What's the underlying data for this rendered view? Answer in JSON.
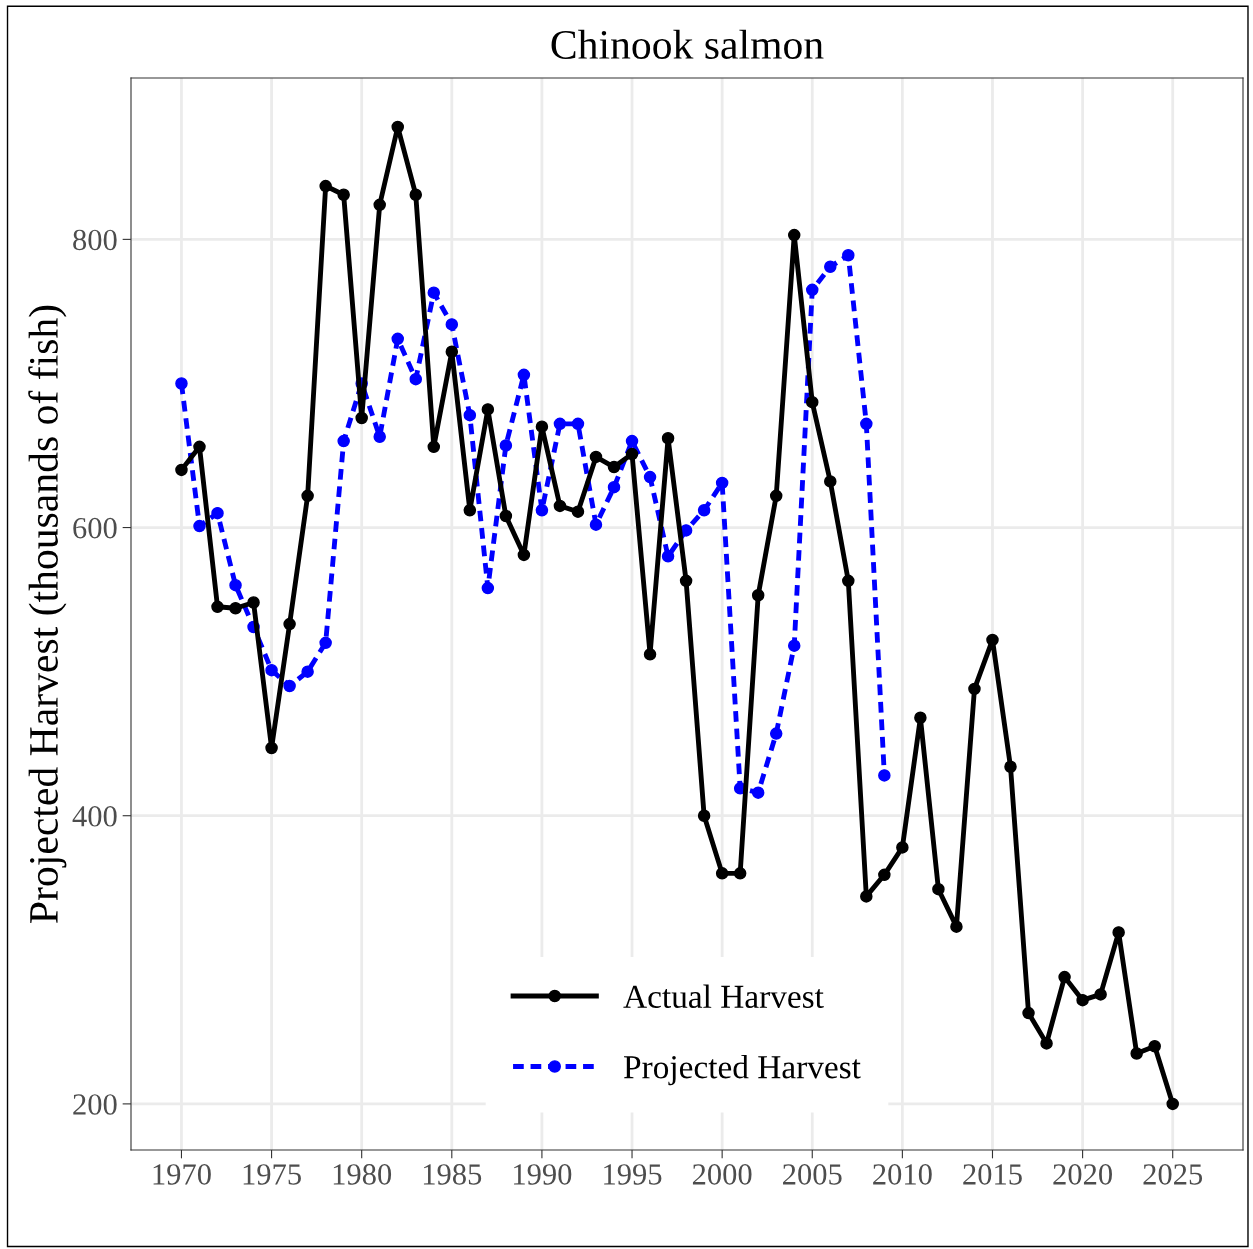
{
  "chart_data": {
    "type": "line",
    "title": "Chinook salmon",
    "ylabel": "Projected Harvest (thousands of fish)",
    "x": [
      1970,
      1971,
      1972,
      1973,
      1974,
      1975,
      1976,
      1977,
      1978,
      1979,
      1980,
      1981,
      1982,
      1983,
      1984,
      1985,
      1986,
      1987,
      1988,
      1989,
      1990,
      1991,
      1992,
      1993,
      1994,
      1995,
      1996,
      1997,
      1998,
      1999,
      2000,
      2001,
      2002,
      2003,
      2004,
      2005,
      2006,
      2007,
      2008,
      2009,
      2010,
      2011,
      2012,
      2013,
      2014,
      2015,
      2016,
      2017,
      2018,
      2019,
      2020,
      2021,
      2022,
      2023,
      2024,
      2025
    ],
    "series": [
      {
        "name": "Actual Harvest",
        "color": "#000000",
        "marker": "circle",
        "line_style": "solid",
        "values": [
          640,
          656,
          545,
          544,
          548,
          447,
          533,
          622,
          837,
          831,
          676,
          824,
          878,
          831,
          656,
          722,
          612,
          682,
          608,
          581,
          670,
          615,
          611,
          649,
          642,
          651,
          512,
          662,
          563,
          400,
          360,
          360,
          553,
          622,
          803,
          687,
          632,
          563,
          344,
          359,
          378,
          468,
          349,
          323,
          488,
          522,
          434,
          263,
          242,
          288,
          272,
          276,
          319,
          235,
          240,
          200
        ]
      },
      {
        "name": "Projected Harvest",
        "color": "#0000ff",
        "marker": "circle",
        "line_style": "dashed",
        "values": [
          700,
          601,
          610,
          560,
          531,
          501,
          490,
          500,
          520,
          660,
          700,
          663,
          731,
          703,
          763,
          741,
          678,
          558,
          657,
          706,
          612,
          672,
          672,
          602,
          628,
          660,
          635,
          580,
          598,
          612,
          631,
          419,
          416,
          457,
          518,
          765,
          781,
          789,
          672,
          428,
          null,
          null,
          null,
          null,
          null,
          null,
          null,
          null,
          null,
          null,
          null,
          null,
          null,
          null,
          null,
          null
        ]
      }
    ],
    "xlim": [
      1967.2,
      2028.9
    ],
    "xticks": [
      1970,
      1975,
      1980,
      1985,
      1990,
      1995,
      2000,
      2005,
      2010,
      2015,
      2020,
      2025
    ],
    "ylim": [
      168,
      912
    ],
    "yticks": [
      200,
      400,
      600,
      800
    ],
    "grid": true,
    "legend": "bottom"
  }
}
